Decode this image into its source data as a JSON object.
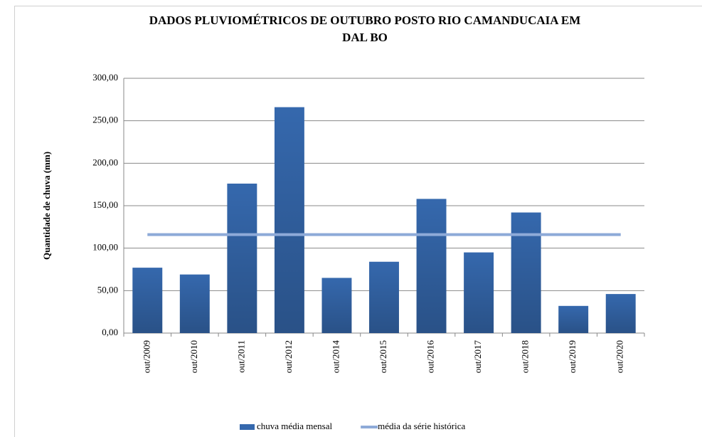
{
  "chart_data": {
    "type": "bar",
    "title": [
      "DADOS PLUVIOMÉTRICOS DE OUTUBRO POSTO RIO CAMANDUCAIA EM",
      "DAL BO"
    ],
    "y_label": "Quantidade de chuva (mm)",
    "categories": [
      "out/2009",
      "out/2010",
      "out/2011",
      "out/2012",
      "out/2014",
      "out/2015",
      "out/2016",
      "out/2017",
      "out/2018",
      "out/2019",
      "out/2020"
    ],
    "series": [
      {
        "name": "chuva média mensal",
        "type": "bar",
        "color": "#3568ad",
        "values": [
          77,
          69,
          176,
          266,
          65,
          84,
          158,
          95,
          142,
          32,
          46
        ]
      },
      {
        "name": "média da série histórica",
        "type": "line",
        "color": "#8eaad8",
        "values": [
          116,
          116,
          116,
          116,
          116,
          116,
          116,
          116,
          116,
          116,
          116
        ]
      }
    ],
    "ylim": [
      0,
      300
    ],
    "yticks": [
      {
        "value": 0,
        "label": "0,00"
      },
      {
        "value": 50,
        "label": "50,00"
      },
      {
        "value": 100,
        "label": "100,00"
      },
      {
        "value": 150,
        "label": "150,00"
      },
      {
        "value": 200,
        "label": "200,00"
      },
      {
        "value": 250,
        "label": "250,00"
      },
      {
        "value": 300,
        "label": "300,00"
      }
    ],
    "grid": true,
    "legend": "bottom"
  }
}
